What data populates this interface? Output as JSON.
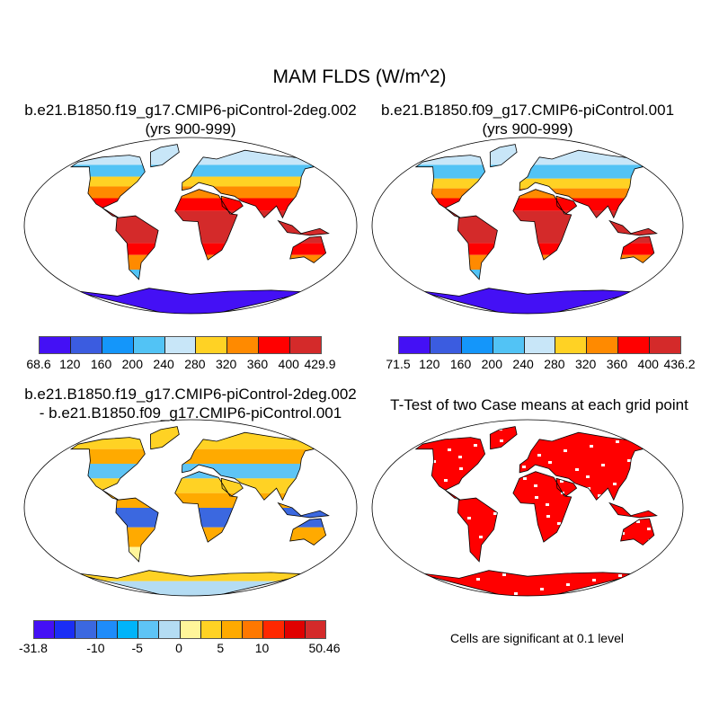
{
  "title": "MAM FLDS (W/m^2)",
  "panels": [
    {
      "title1": "b.e21.B1850.f19_g17.CMIP6-piControl-2deg.002",
      "title2": "(yrs 900-999)"
    },
    {
      "title1": "b.e21.B1850.f09_g17.CMIP6-piControl.001",
      "title2": "(yrs 900-999)"
    },
    {
      "title1": "b.e21.B1850.f19_g17.CMIP6-piControl-2deg.002",
      "title2": "- b.e21.B1850.f09_g17.CMIP6-piControl.001"
    },
    {
      "title1": "T-Test of two Case means at each grid point",
      "note": "Cells are significant at 0.1 level"
    }
  ],
  "colorbars": [
    {
      "labels": [
        "68.6",
        "120",
        "160",
        "200",
        "240",
        "280",
        "320",
        "360",
        "400",
        "429.9"
      ],
      "colors": [
        "#4410f5",
        "#3b5ce0",
        "#1496fa",
        "#52c3f5",
        "#c8e6f8",
        "#ffd224",
        "#ff8a00",
        "#ff0000",
        "#d42a2a"
      ]
    },
    {
      "labels": [
        "71.5",
        "120",
        "160",
        "200",
        "240",
        "280",
        "320",
        "360",
        "400",
        "436.2"
      ],
      "colors": [
        "#4410f5",
        "#3b5ce0",
        "#1496fa",
        "#52c3f5",
        "#c8e6f8",
        "#ffd224",
        "#ff8a00",
        "#ff0000",
        "#d42a2a"
      ]
    },
    {
      "labels": [
        "-31.8",
        "-10",
        "-5",
        "0",
        "5",
        "10",
        "50.46"
      ],
      "label_edges": [
        0,
        3,
        5,
        7,
        9,
        11,
        14
      ],
      "colors": [
        "#4410f5",
        "#1a2ef5",
        "#3b68e0",
        "#1e8cfa",
        "#00b4fa",
        "#5ec4f5",
        "#b4dcf3",
        "#fff59a",
        "#ffd224",
        "#ffaa00",
        "#ff7800",
        "#ff2800",
        "#e00000",
        "#d42a2a"
      ]
    }
  ],
  "significance_color": "#ff0000"
}
